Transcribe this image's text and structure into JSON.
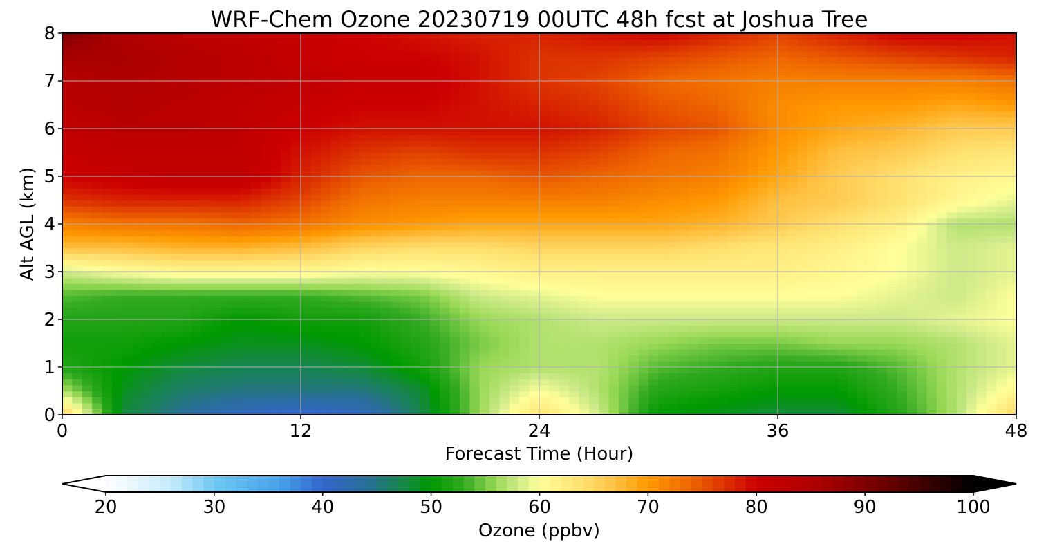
{
  "chart_data": {
    "type": "heatmap",
    "title": "WRF-Chem Ozone  20230719 00UTC 48h fcst at Joshua Tree",
    "xlabel": "Forecast Time (Hour)",
    "ylabel": "Alt AGL (km)",
    "xlim": [
      0,
      48
    ],
    "ylim": [
      0,
      8
    ],
    "xticks": [
      "0",
      "12",
      "24",
      "36",
      "48"
    ],
    "yticks": [
      "0",
      "1",
      "2",
      "3",
      "4",
      "5",
      "6",
      "7",
      "8"
    ],
    "grid": true,
    "x": [
      0,
      3,
      6,
      9,
      12,
      15,
      18,
      21,
      24,
      27,
      30,
      33,
      36,
      39,
      42,
      45,
      48
    ],
    "y": [
      0,
      0.5,
      1,
      1.5,
      2,
      2.5,
      3,
      3.5,
      4,
      4.5,
      5,
      5.5,
      6,
      6.5,
      7,
      7.5,
      8
    ],
    "z": [
      [
        66,
        48,
        44,
        41,
        40,
        41,
        47,
        56,
        64,
        58,
        50,
        49,
        48,
        48,
        52,
        57,
        65
      ],
      [
        57,
        49,
        46,
        45,
        45,
        45,
        48,
        56,
        60,
        57,
        52,
        51,
        50,
        50,
        53,
        57,
        61
      ],
      [
        52,
        50,
        48,
        47,
        47,
        48,
        51,
        56,
        57,
        57,
        54,
        53,
        52,
        52,
        54,
        57,
        59
      ],
      [
        51,
        51,
        50,
        49,
        49,
        50,
        52,
        55,
        57,
        57,
        56,
        55,
        55,
        56,
        56,
        57,
        59
      ],
      [
        52,
        52,
        52,
        50,
        51,
        51,
        53,
        56,
        57,
        58,
        58,
        58,
        58,
        58,
        58,
        59,
        60
      ],
      [
        54,
        53,
        53,
        53,
        53,
        54,
        55,
        58,
        59,
        60,
        60,
        60,
        60,
        60,
        59,
        58,
        60
      ],
      [
        58,
        60,
        61,
        61,
        61,
        60,
        60,
        61,
        62,
        62,
        62,
        62,
        62,
        61,
        60,
        58,
        59
      ],
      [
        67,
        67,
        68,
        68,
        67,
        65,
        64,
        64,
        65,
        65,
        65,
        64,
        63,
        62,
        60,
        58,
        59
      ],
      [
        72,
        73,
        73,
        74,
        73,
        71,
        70,
        69,
        69,
        69,
        69,
        68,
        66,
        64,
        62,
        57,
        57
      ],
      [
        77,
        78,
        78,
        78,
        76,
        73,
        72,
        72,
        72,
        72,
        71,
        70,
        67,
        66,
        64,
        61,
        59
      ],
      [
        80,
        81,
        82,
        82,
        78,
        75,
        74,
        74,
        75,
        74,
        73,
        72,
        69,
        66,
        64,
        62,
        61
      ],
      [
        81,
        82,
        82,
        82,
        79,
        77,
        76,
        77,
        77,
        76,
        74,
        73,
        70,
        67,
        66,
        64,
        63
      ],
      [
        82,
        83,
        83,
        82,
        80,
        79,
        79,
        79,
        79,
        78,
        76,
        75,
        71,
        69,
        68,
        66,
        66
      ],
      [
        83,
        84,
        83,
        82,
        81,
        80,
        80,
        79,
        78,
        77,
        75,
        74,
        71,
        70,
        70,
        69,
        70
      ],
      [
        84,
        85,
        84,
        83,
        82,
        81,
        81,
        79,
        77,
        76,
        74,
        73,
        72,
        72,
        72,
        72,
        73
      ],
      [
        86,
        86,
        84,
        83,
        81,
        80,
        80,
        79,
        77,
        77,
        76,
        75,
        74,
        75,
        76,
        77,
        78
      ],
      [
        90,
        85,
        83,
        82,
        81,
        80,
        79,
        78,
        78,
        79,
        80,
        78,
        76,
        78,
        80,
        80,
        79
      ]
    ],
    "colorbar": {
      "label": "Ozone  (ppbv)",
      "min": 20,
      "max": 100,
      "ticks": [
        "20",
        "30",
        "40",
        "50",
        "60",
        "70",
        "80",
        "90",
        "100"
      ],
      "extend": "both",
      "stops": [
        [
          20,
          "#ffffff"
        ],
        [
          26,
          "#c6ebfb"
        ],
        [
          30,
          "#6fc7f2"
        ],
        [
          36,
          "#47a2e8"
        ],
        [
          40,
          "#3366cc"
        ],
        [
          44,
          "#2a6f9a"
        ],
        [
          48,
          "#138a3a"
        ],
        [
          50,
          "#009900"
        ],
        [
          53,
          "#33aa22"
        ],
        [
          56,
          "#99d955"
        ],
        [
          58,
          "#cce988"
        ],
        [
          60,
          "#ffff99"
        ],
        [
          64,
          "#ffe070"
        ],
        [
          67,
          "#ffc040"
        ],
        [
          70,
          "#ff9900"
        ],
        [
          74,
          "#ee6600"
        ],
        [
          77,
          "#dd3300"
        ],
        [
          80,
          "#cc0000"
        ],
        [
          86,
          "#aa0000"
        ],
        [
          92,
          "#6a0000"
        ],
        [
          97,
          "#2a0000"
        ],
        [
          100,
          "#000000"
        ]
      ]
    }
  }
}
